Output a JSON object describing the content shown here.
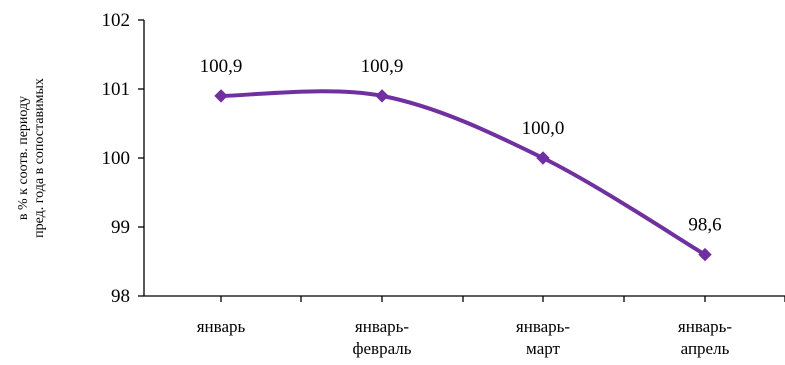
{
  "chart_data": {
    "type": "line",
    "title": "",
    "xlabel": "",
    "ylabel": [
      "в % к соотв. периоду",
      "пред. года в сопоставимых"
    ],
    "ylim": [
      98,
      102
    ],
    "yticks": [
      "98",
      "99",
      "100",
      "101",
      "102"
    ],
    "categories": [
      [
        "январь"
      ],
      [
        "январь-",
        "февраль"
      ],
      [
        "январь-",
        "март"
      ],
      [
        "январь-",
        "апрель"
      ]
    ],
    "series": [
      {
        "values": [
          100.9,
          100.9,
          100.0,
          98.6
        ],
        "data_labels": [
          "100,9",
          "100,9",
          "100,0",
          "98,6"
        ],
        "color": "#7030A0",
        "marker": "diamond",
        "smooth": true
      }
    ],
    "grid": false,
    "legend": "none"
  }
}
